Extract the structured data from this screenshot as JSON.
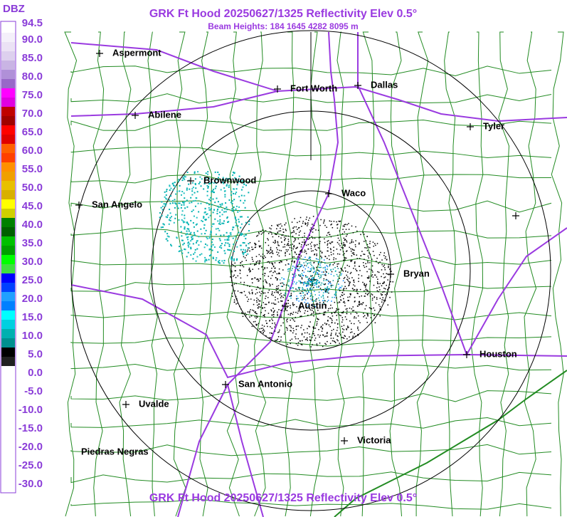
{
  "header": {
    "title": "GRK Ft Hood 20250627/1325 Reflectivity Elev 0.5°",
    "subtitle": "Beam Heights: 184 1645 4282 8095 m",
    "footer_title": "GRK Ft Hood 20250627/1325 Reflectivity Elev 0.5°"
  },
  "legend": {
    "unit": "DBZ",
    "labels": [
      "94.5",
      "90.0",
      "85.0",
      "80.0",
      "75.0",
      "70.0",
      "65.0",
      "60.0",
      "55.0",
      "50.0",
      "45.0",
      "40.0",
      "35.0",
      "30.0",
      "25.0",
      "20.0",
      "15.0",
      "10.0",
      "5.0",
      "0.0",
      "-5.0",
      "-10.0",
      "-15.0",
      "-20.0",
      "-25.0",
      "-30.0"
    ]
  },
  "cities": [
    "Aspermont",
    "Fort Worth",
    "Dallas",
    "Abilene",
    "Tyler",
    "Brownwood",
    "Waco",
    "San Angelo",
    "Bryan",
    "Austin",
    "Houston",
    "San Antonio",
    "Uvalde",
    "Victoria",
    "Piedras Negras"
  ]
}
